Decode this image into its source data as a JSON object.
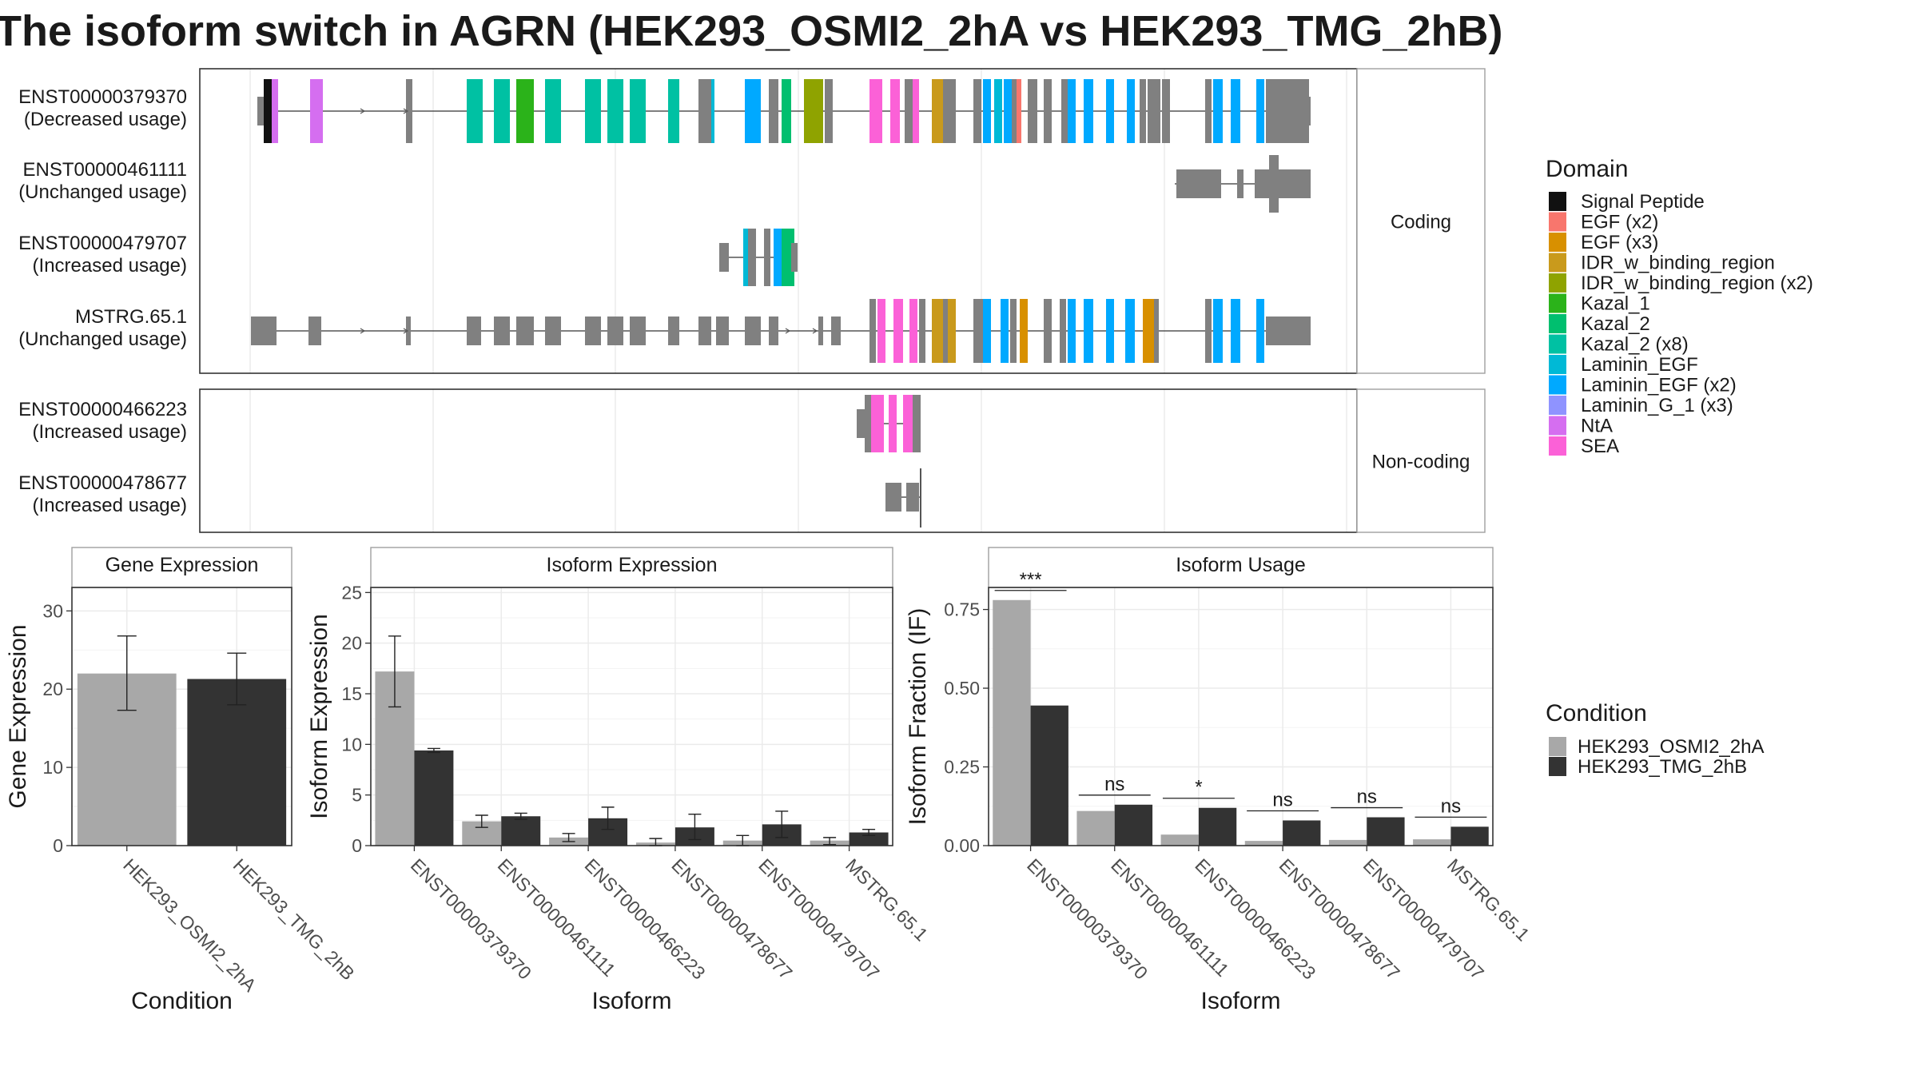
{
  "title": "The isoform switch in AGRN (HEK293_OSMI2_2hA vs HEK293_TMG_2hB)",
  "colors": {
    "osmi": "#a8a8a8",
    "tmg": "#333333",
    "exon": "#808080"
  },
  "domain_legend": {
    "title": "Domain",
    "items": [
      {
        "label": "Signal Peptide",
        "color": "#111111"
      },
      {
        "label": "EGF (x2)",
        "color": "#f8766d"
      },
      {
        "label": "EGF (x3)",
        "color": "#d89000"
      },
      {
        "label": "IDR_w_binding_region",
        "color": "#c99a1c"
      },
      {
        "label": "IDR_w_binding_region (x2)",
        "color": "#8fa300"
      },
      {
        "label": "Kazal_1",
        "color": "#2bb31a"
      },
      {
        "label": "Kazal_2",
        "color": "#00bf6f"
      },
      {
        "label": "Kazal_2 (x8)",
        "color": "#00c1a3"
      },
      {
        "label": "Laminin_EGF",
        "color": "#00b9d6"
      },
      {
        "label": "Laminin_EGF (x2)",
        "color": "#00a9ff"
      },
      {
        "label": "Laminin_G_1 (x3)",
        "color": "#8f93ff"
      },
      {
        "label": "NtA",
        "color": "#d56ef0"
      },
      {
        "label": "SEA",
        "color": "#fb61d7"
      }
    ]
  },
  "condition_legend": {
    "title": "Condition",
    "items": [
      {
        "label": "HEK293_OSMI2_2hA",
        "color": "#a8a8a8"
      },
      {
        "label": "HEK293_TMG_2hB",
        "color": "#333333"
      }
    ]
  },
  "structure": {
    "coding_label": "Coding",
    "noncoding_label": "Non-coding",
    "coding_transcripts": [
      {
        "id": "ENST00000379370",
        "usage": "(Decreased usage)"
      },
      {
        "id": "ENST00000461111",
        "usage": "(Unchanged usage)"
      },
      {
        "id": "ENST00000479707",
        "usage": "(Increased usage)"
      },
      {
        "id": "MSTRG.65.1",
        "usage": "(Unchanged usage)"
      }
    ],
    "noncoding_transcripts": [
      {
        "id": "ENST00000466223",
        "usage": "(Increased usage)"
      },
      {
        "id": "ENST00000478677",
        "usage": "(Increased usage)"
      }
    ]
  },
  "chart_data": [
    {
      "type": "bar",
      "title": "Gene Expression",
      "xlabel": "Condition",
      "ylabel": "Gene Expression",
      "ylim": [
        0,
        33
      ],
      "yticks": [
        0,
        10,
        20,
        30
      ],
      "categories": [
        "HEK293_OSMI2_2hA",
        "HEK293_TMG_2hB"
      ],
      "values": [
        22.0,
        21.3
      ],
      "errors": [
        [
          17.3,
          26.8
        ],
        [
          18.0,
          24.6
        ]
      ]
    },
    {
      "type": "bar",
      "title": "Isoform Expression",
      "xlabel": "Isoform",
      "ylabel": "Isoform Expression",
      "ylim": [
        0,
        25.5
      ],
      "yticks": [
        0,
        5,
        10,
        15,
        20,
        25
      ],
      "categories": [
        "ENST00000379370",
        "ENST00000461111",
        "ENST00000466223",
        "ENST00000478677",
        "ENST00000479707",
        "MSTRG.65.1"
      ],
      "series": [
        {
          "name": "HEK293_OSMI2_2hA",
          "values": [
            17.2,
            2.4,
            0.8,
            0.3,
            0.5,
            0.5
          ],
          "errors": [
            [
              13.7,
              20.7
            ],
            [
              1.8,
              3.0
            ],
            [
              0.4,
              1.2
            ],
            [
              0.0,
              0.7
            ],
            [
              0.0,
              1.0
            ],
            [
              0.1,
              0.8
            ]
          ]
        },
        {
          "name": "HEK293_TMG_2hB",
          "values": [
            9.4,
            2.9,
            2.7,
            1.8,
            2.1,
            1.3
          ],
          "errors": [
            [
              9.2,
              9.6
            ],
            [
              2.6,
              3.2
            ],
            [
              1.6,
              3.8
            ],
            [
              0.6,
              3.1
            ],
            [
              0.8,
              3.4
            ],
            [
              1.0,
              1.6
            ]
          ]
        }
      ]
    },
    {
      "type": "bar",
      "title": "Isoform Usage",
      "xlabel": "Isoform",
      "ylabel": "Isoform Fraction (IF)",
      "ylim": [
        0,
        0.82
      ],
      "yticks": [
        0.0,
        0.25,
        0.5,
        0.75
      ],
      "ytick_labels": [
        "0.00",
        "0.25",
        "0.50",
        "0.75"
      ],
      "categories": [
        "ENST00000379370",
        "ENST00000461111",
        "ENST00000466223",
        "ENST00000478677",
        "ENST00000479707",
        "MSTRG.65.1"
      ],
      "series": [
        {
          "name": "HEK293_OSMI2_2hA",
          "values": [
            0.78,
            0.11,
            0.035,
            0.015,
            0.018,
            0.02
          ]
        },
        {
          "name": "HEK293_TMG_2hB",
          "values": [
            0.445,
            0.13,
            0.12,
            0.08,
            0.09,
            0.06
          ]
        }
      ],
      "significance": [
        "***",
        "ns",
        "*",
        "ns",
        "ns",
        "ns"
      ]
    }
  ]
}
